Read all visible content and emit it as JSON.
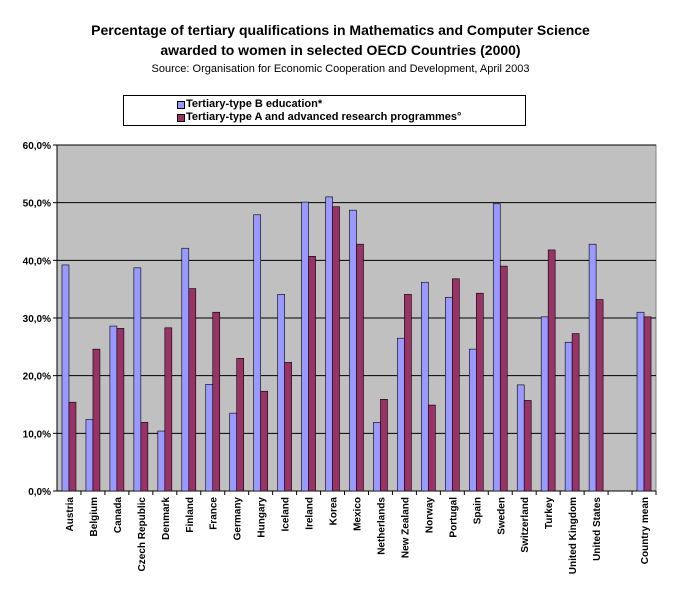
{
  "chart_data": {
    "type": "bar",
    "title_lines": [
      "Percentage of tertiary qualifications in Mathematics and Computer Science",
      "awarded to women in selected OECD Countries (2000)"
    ],
    "subtitle": "Source: Organisation for Economic Cooperation and Development, April 2003",
    "categories": [
      "Austria",
      "Belgium",
      "Canada",
      "Czech Republic",
      "Denmark",
      "Finland",
      "France",
      "Germany",
      "Hungary",
      "Iceland",
      "Ireland",
      "Korea",
      "Mexico",
      "Netherlands",
      "New Zealand",
      "Norway",
      "Portugal",
      "Spain",
      "Sweden",
      "Switzerland",
      "Turkey",
      "United Kingdom",
      "United States",
      "",
      "Country mean"
    ],
    "series": [
      {
        "name": "Tertiary-type B education*",
        "color": "#9999ff",
        "values": [
          39.2,
          12.4,
          28.6,
          38.7,
          10.4,
          42.1,
          18.5,
          13.5,
          47.9,
          34.1,
          50.1,
          51.0,
          48.7,
          11.9,
          26.5,
          36.2,
          33.6,
          24.6,
          49.8,
          18.4,
          30.2,
          25.8,
          42.8,
          null,
          31.0
        ]
      },
      {
        "name": "Tertiary-type A and advanced research programmes°",
        "color": "#993366",
        "values": [
          15.4,
          24.6,
          28.2,
          11.9,
          28.3,
          35.1,
          31.0,
          23.0,
          17.3,
          22.3,
          40.7,
          49.3,
          42.8,
          15.9,
          34.1,
          14.9,
          36.8,
          34.3,
          39.0,
          15.7,
          41.8,
          27.3,
          33.2,
          null,
          30.2
        ]
      }
    ],
    "y_ticks": [
      "0,0%",
      "10,0%",
      "20,0%",
      "30,0%",
      "40,0%",
      "50,0%",
      "60,0%"
    ],
    "ylim": [
      0,
      60
    ],
    "grid": true,
    "plot_background": "#c0c0c0",
    "legend_position": "top"
  }
}
